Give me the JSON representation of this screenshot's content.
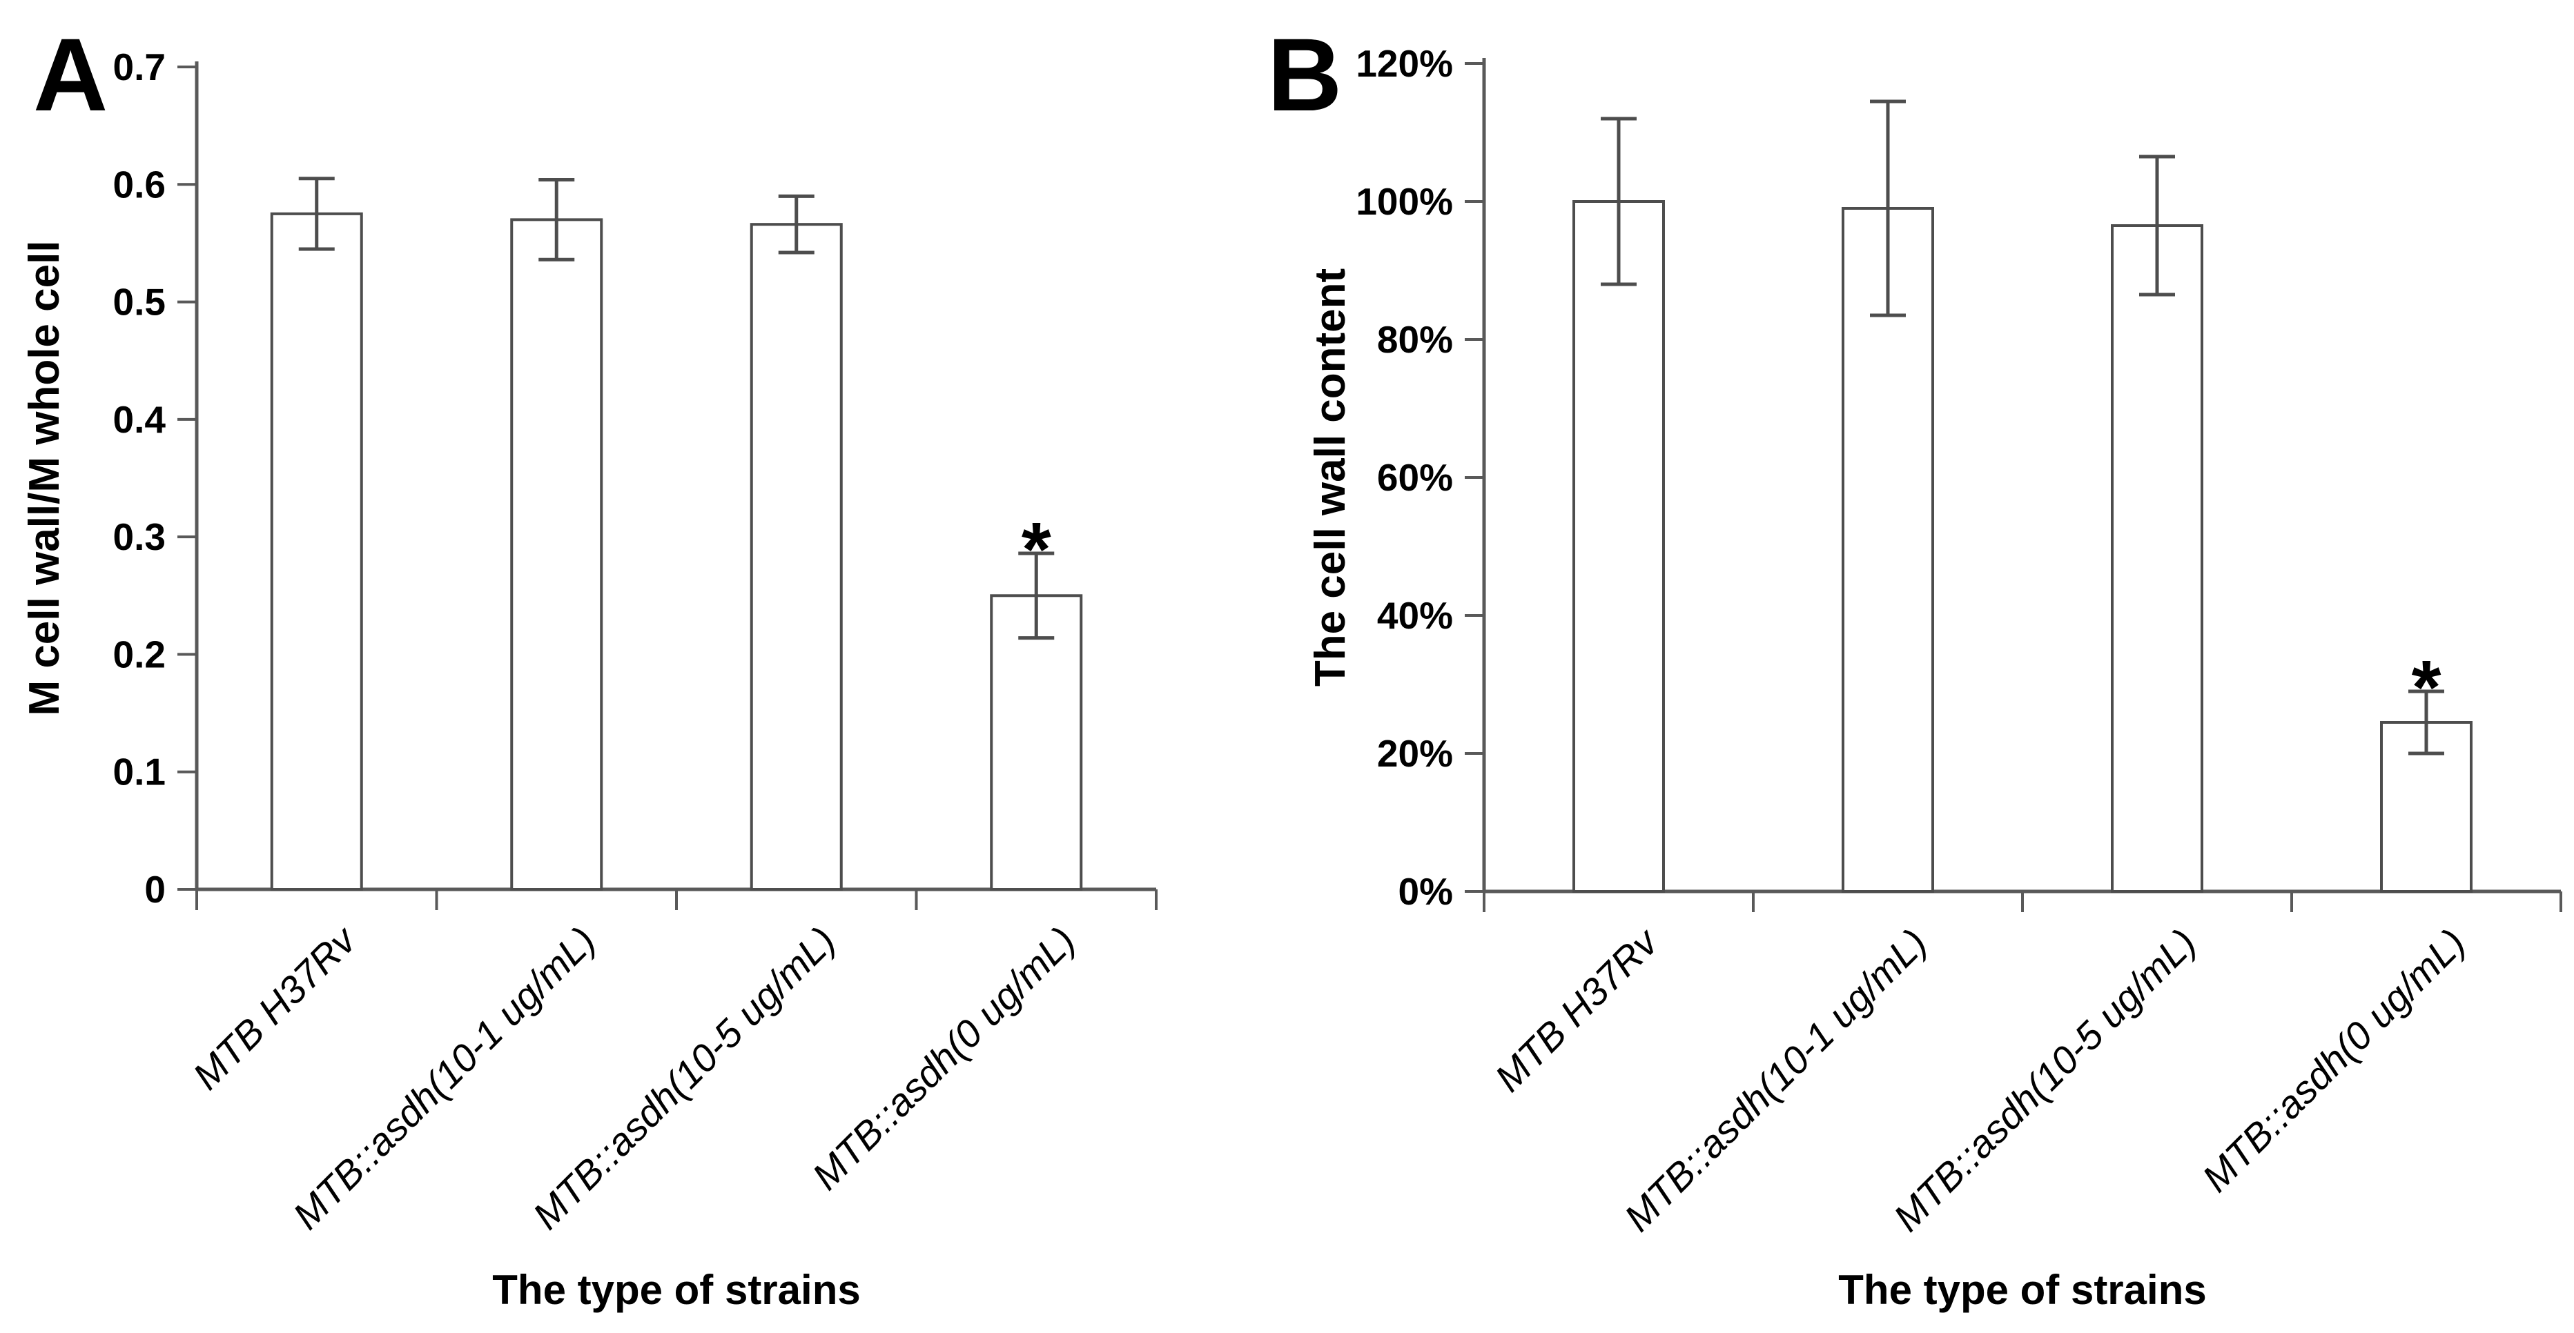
{
  "figure": {
    "background": "#FFFFFF",
    "text_color": "#000000",
    "axis_color": "#595959",
    "significance_color": "#FF0000"
  },
  "chart_data": [
    {
      "panel_label": "A",
      "type": "bar",
      "title": "",
      "xlabel": "The type of strains",
      "ylabel": "M cell wall/M whole cell",
      "categories": [
        "MTB H37Rv",
        "MTB::asdh(10-1 ug/mL)",
        "MTB::asdh(10-5 ug/mL)",
        "MTB::asdh(0 ug/mL)"
      ],
      "values": [
        0.575,
        0.57,
        0.566,
        0.25
      ],
      "errors": [
        0.03,
        0.034,
        0.024,
        0.036
      ],
      "ylim": [
        0,
        0.7
      ],
      "ytick_labels": [
        "0",
        "0.1",
        "0.2",
        "0.3",
        "0.4",
        "0.5",
        "0.6",
        "0.7"
      ],
      "grid": false,
      "legend": "none",
      "bar_fill": "#FFFFFF",
      "bar_stroke": "#4D4D4D",
      "axis_color": "#595959",
      "significance": {
        "category_index": 3,
        "symbol": "*",
        "color": "#FF0000"
      }
    },
    {
      "panel_label": "B",
      "type": "bar",
      "title": "",
      "xlabel": "The type of strains",
      "ylabel": "The cell wall content",
      "categories": [
        "MTB H37Rv",
        "MTB::asdh(10-1 ug/mL)",
        "MTB::asdh(10-5 ug/mL)",
        "MTB::asdh(0 ug/mL)"
      ],
      "values": [
        100,
        99,
        96.5,
        24.5
      ],
      "errors": [
        12,
        15.5,
        10,
        4.5
      ],
      "ylim": [
        0,
        120
      ],
      "ytick_labels": [
        "0%",
        "20%",
        "40%",
        "60%",
        "80%",
        "100%",
        "120%"
      ],
      "grid": false,
      "legend": "none",
      "bar_fill": "#FFFFFF",
      "bar_stroke": "#4D4D4D",
      "axis_color": "#595959",
      "significance": {
        "category_index": 3,
        "symbol": "*",
        "color": "#FF0000"
      }
    }
  ]
}
